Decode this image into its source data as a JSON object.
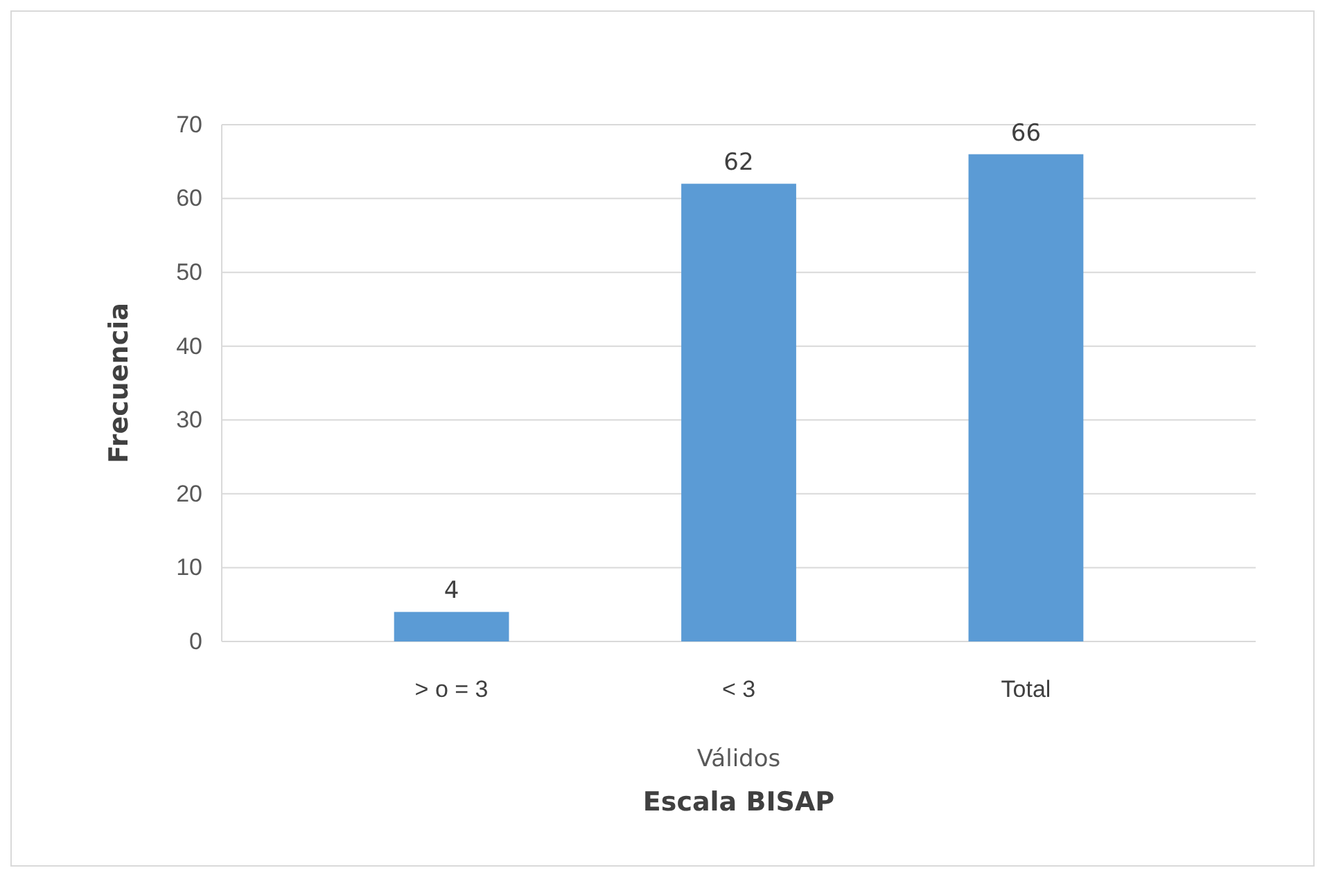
{
  "chart_data": {
    "type": "bar",
    "categories": [
      "> o = 3",
      "< 3",
      "Total"
    ],
    "values": [
      4,
      62,
      66
    ],
    "color": "#5b9bd5",
    "ylim": [
      0,
      70
    ],
    "yticks": [
      0,
      10,
      20,
      30,
      40,
      50,
      60,
      70
    ],
    "grid": "y",
    "data_labels": true,
    "ylabel": "Frecuencia",
    "xlabel": "Escala BISAP",
    "annotations": [
      "Válidos"
    ]
  }
}
